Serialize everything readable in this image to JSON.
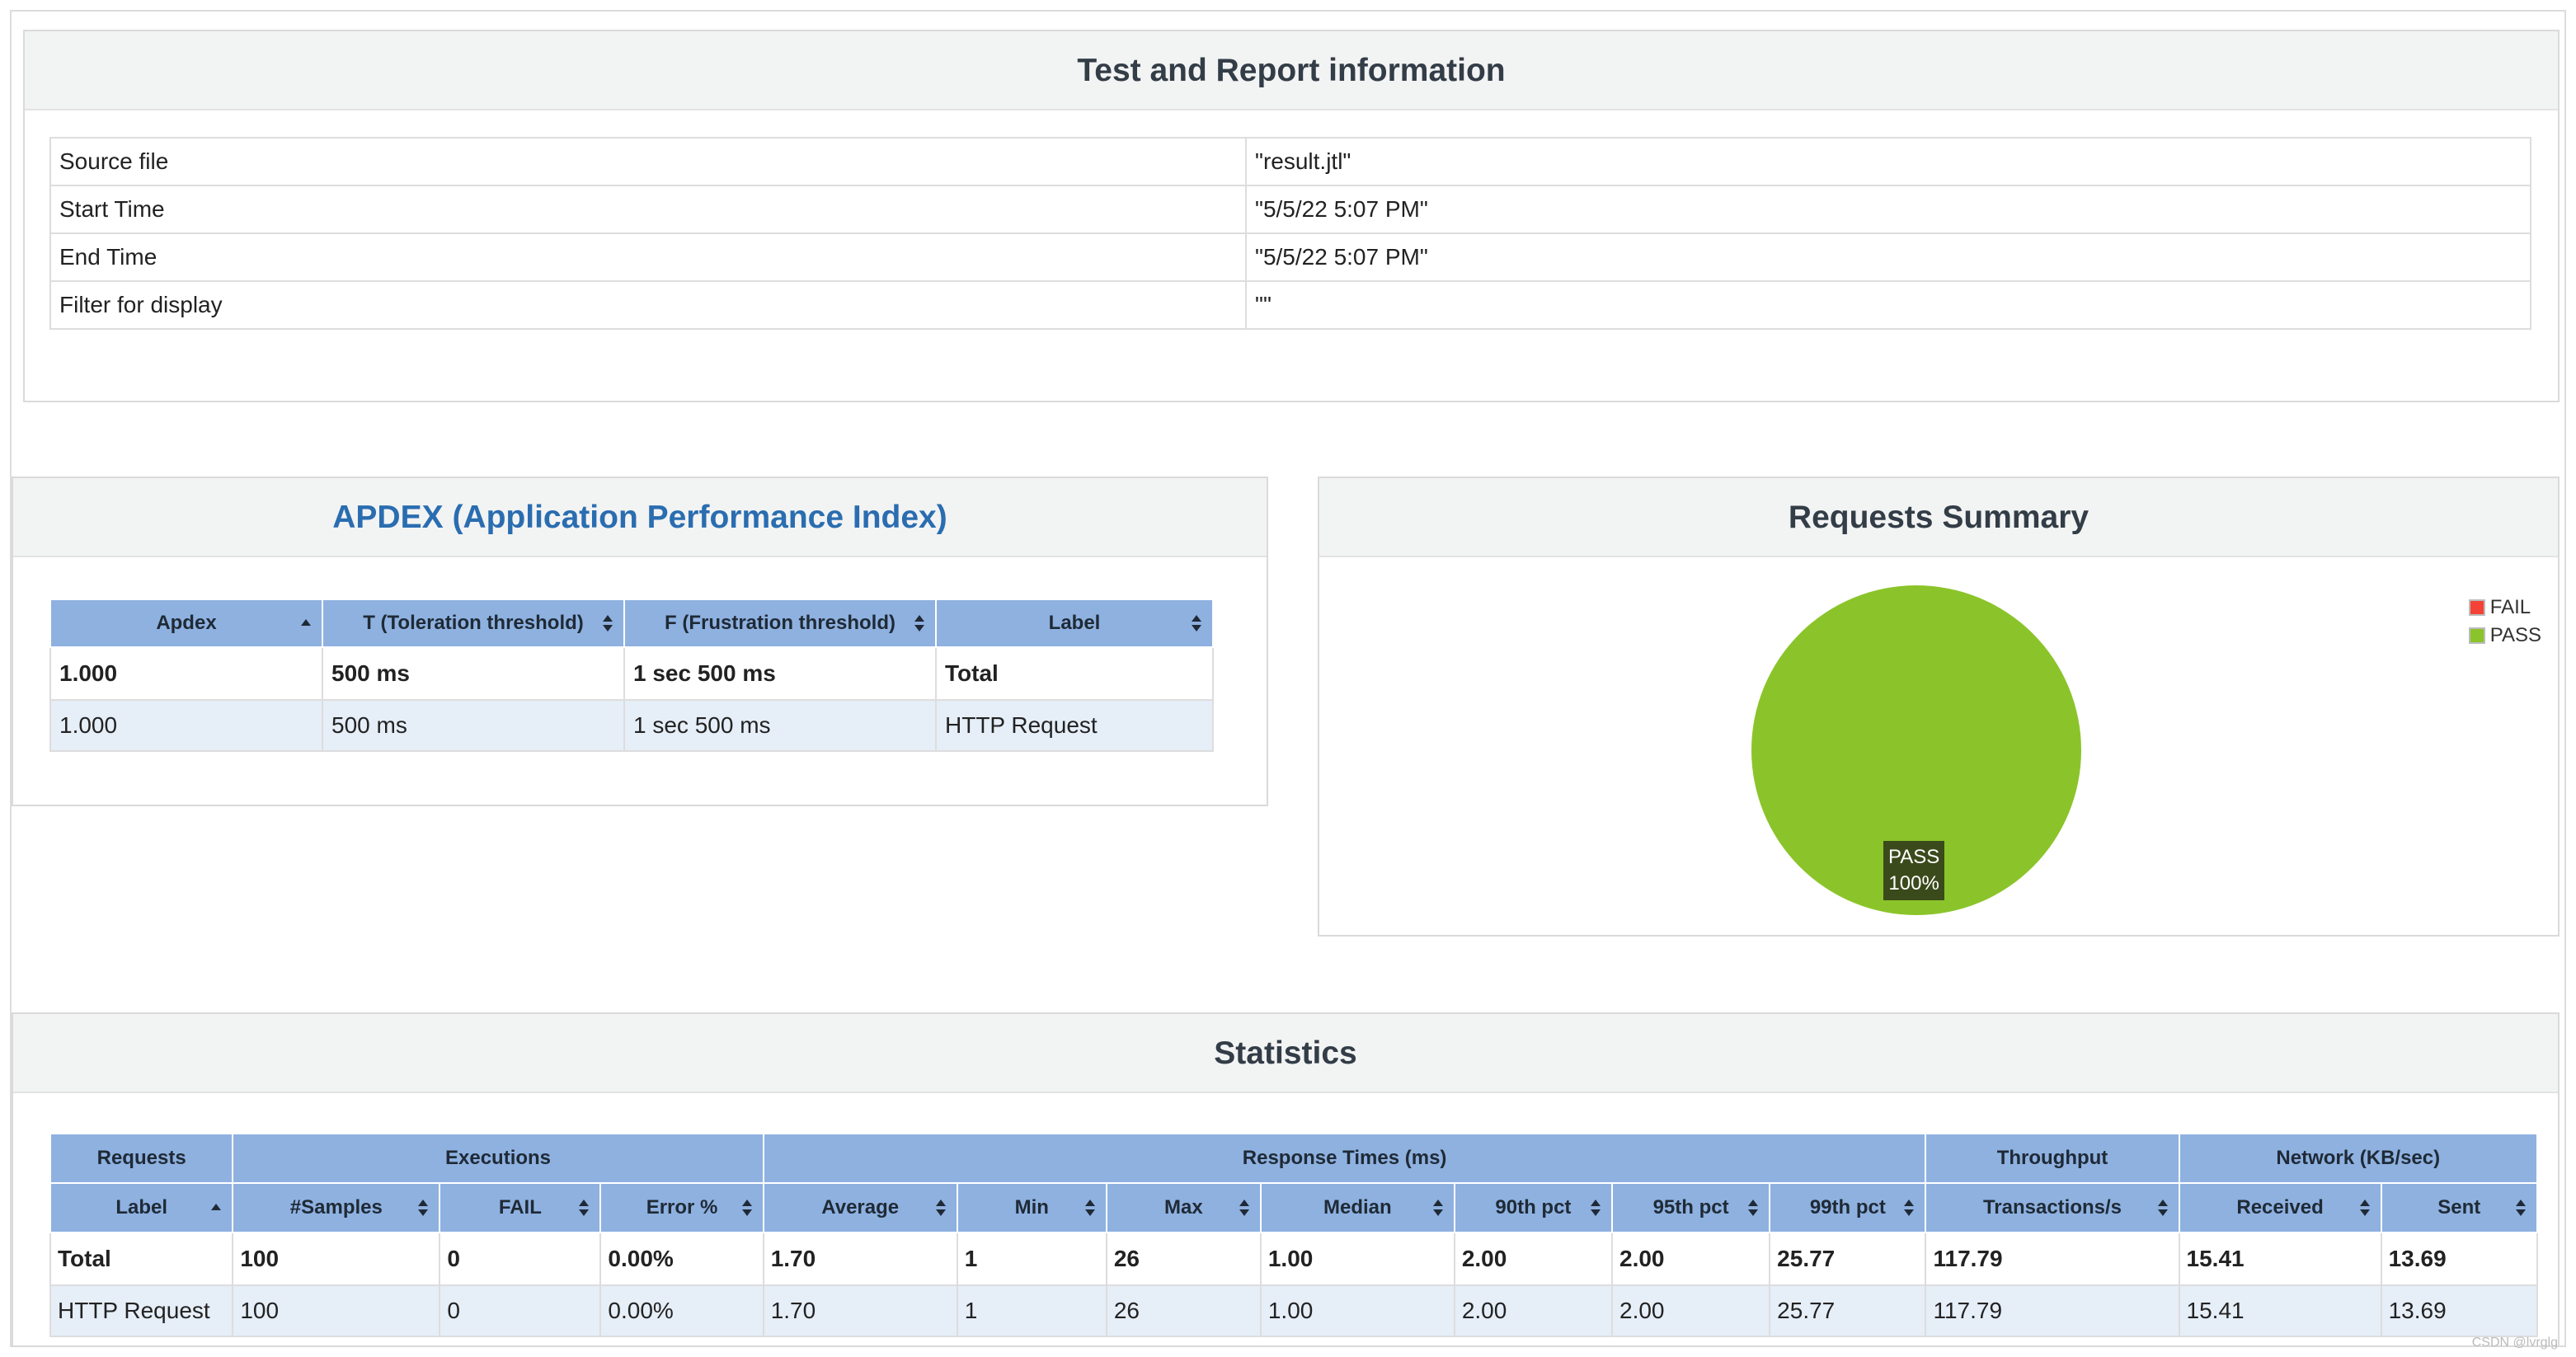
{
  "info": {
    "title": "Test and Report information",
    "rows": [
      {
        "key": "Source file",
        "value": "\"result.jtl\""
      },
      {
        "key": "Start Time",
        "value": "\"5/5/22 5:07 PM\""
      },
      {
        "key": "End Time",
        "value": "\"5/5/22 5:07 PM\""
      },
      {
        "key": "Filter for display",
        "value": "\"\""
      }
    ]
  },
  "apdex": {
    "title": "APDEX (Application Performance Index)",
    "headers": [
      "Apdex",
      "T (Toleration threshold)",
      "F (Frustration threshold)",
      "Label"
    ],
    "total": [
      "1.000",
      "500 ms",
      "1 sec 500 ms",
      "Total"
    ],
    "rows": [
      [
        "1.000",
        "500 ms",
        "1 sec 500 ms",
        "HTTP Request"
      ]
    ]
  },
  "summary": {
    "title": "Requests Summary",
    "legend": [
      {
        "label": "FAIL",
        "color": "#f44336"
      },
      {
        "label": "PASS",
        "color": "#8bc42a"
      }
    ],
    "slice_label": "PASS",
    "slice_percent": "100%",
    "chart_data": {
      "type": "pie",
      "categories": [
        "FAIL",
        "PASS"
      ],
      "values": [
        0,
        100
      ]
    }
  },
  "statistics": {
    "title": "Statistics",
    "groups": [
      {
        "label": "Requests",
        "span": 1
      },
      {
        "label": "Executions",
        "span": 3
      },
      {
        "label": "Response Times (ms)",
        "span": 7
      },
      {
        "label": "Throughput",
        "span": 1
      },
      {
        "label": "Network (KB/sec)",
        "span": 2
      }
    ],
    "headers": [
      "Label",
      "#Samples",
      "FAIL",
      "Error %",
      "Average",
      "Min",
      "Max",
      "Median",
      "90th pct",
      "95th pct",
      "99th pct",
      "Transactions/s",
      "Received",
      "Sent"
    ],
    "total": [
      "Total",
      "100",
      "0",
      "0.00%",
      "1.70",
      "1",
      "26",
      "1.00",
      "2.00",
      "2.00",
      "25.77",
      "117.79",
      "15.41",
      "13.69"
    ],
    "rows": [
      [
        "HTTP Request",
        "100",
        "0",
        "0.00%",
        "1.70",
        "1",
        "26",
        "1.00",
        "2.00",
        "2.00",
        "25.77",
        "117.79",
        "15.41",
        "13.69"
      ]
    ]
  },
  "watermark": "CSDN @lvrglg"
}
